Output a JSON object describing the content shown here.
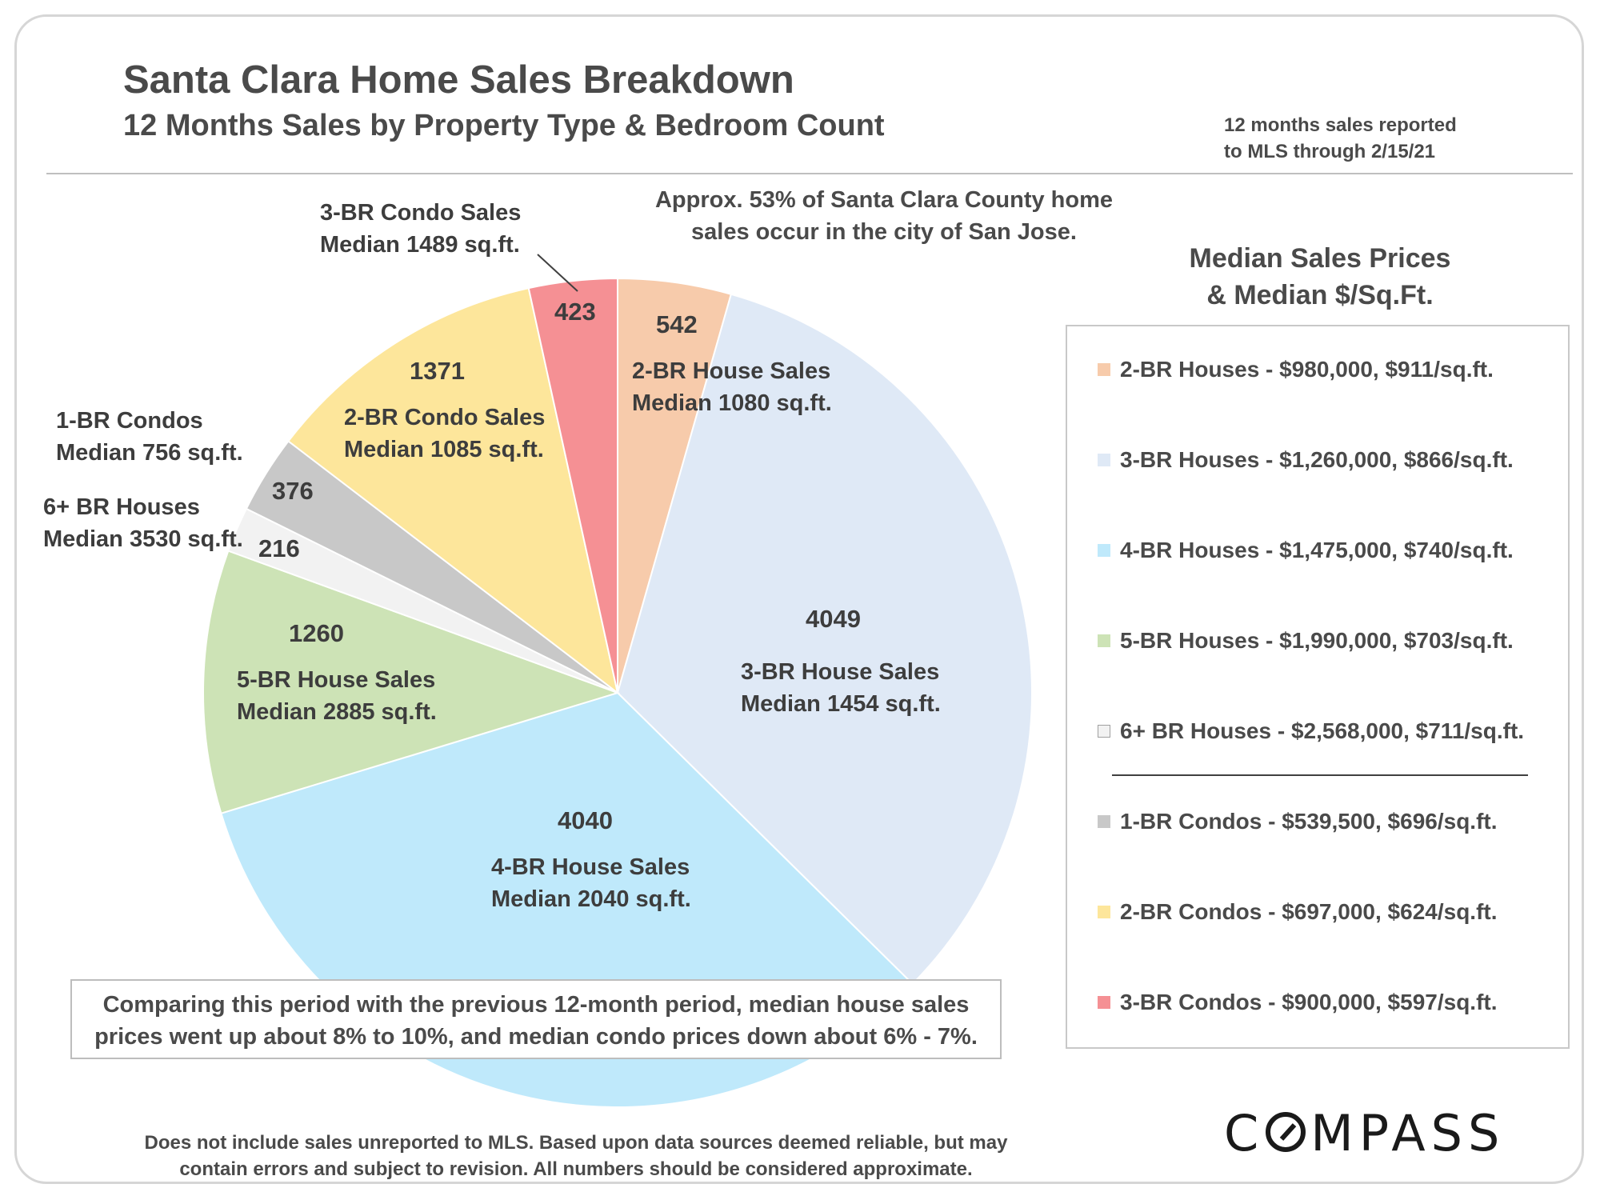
{
  "header": {
    "title": "Santa Clara Home Sales Breakdown",
    "subtitle": "12 Months Sales by Property Type & Bedroom Count",
    "as_of_line1": "12 months sales reported",
    "as_of_line2": "to MLS through 2/15/21"
  },
  "top_note": {
    "line1": "Approx. 53% of Santa Clara County home",
    "line2": "sales occur in the city of San Jose."
  },
  "chart_data": {
    "type": "pie",
    "slices": [
      {
        "label": "2-BR Houses",
        "value": 542,
        "color": "#f7cbab",
        "desc1": "2-BR House Sales",
        "desc2": "Median 1080 sq.ft."
      },
      {
        "label": "3-BR Houses",
        "value": 4049,
        "color": "#dfe9f6",
        "desc1": "3-BR House Sales",
        "desc2": "Median 1454 sq.ft."
      },
      {
        "label": "4-BR Houses",
        "value": 4040,
        "color": "#bfe9fb",
        "desc1": "4-BR House Sales",
        "desc2": "Median 2040 sq.ft."
      },
      {
        "label": "5-BR Houses",
        "value": 1260,
        "color": "#cde3b6",
        "desc1": "5-BR House Sales",
        "desc2": "Median 2885 sq.ft."
      },
      {
        "label": "6+ BR Houses",
        "value": 216,
        "color": "#f2f2f2",
        "desc1": "6+ BR Houses",
        "desc2": "Median 3530 sq.ft."
      },
      {
        "label": "1-BR Condos",
        "value": 376,
        "color": "#c8c8c8",
        "desc1": "1-BR Condos",
        "desc2": "Median 756 sq.ft."
      },
      {
        "label": "2-BR Condos",
        "value": 1371,
        "color": "#fde69b",
        "desc1": "2-BR Condo Sales",
        "desc2": "Median 1085 sq.ft."
      },
      {
        "label": "3-BR Condos",
        "value": 423,
        "color": "#f59094",
        "desc1": "3-BR Condo Sales",
        "desc2": "Median 1489 sq.ft."
      }
    ]
  },
  "legend": {
    "title_line1": "Median Sales Prices",
    "title_line2": "& Median $/Sq.Ft.",
    "items": [
      {
        "text": "2-BR Houses - $980,000, $911/sq.ft.",
        "color": "#f7cbab"
      },
      {
        "text": "3-BR Houses - $1,260,000, $866/sq.ft.",
        "color": "#dfe9f6"
      },
      {
        "text": "4-BR Houses - $1,475,000, $740/sq.ft.",
        "color": "#bfe9fb"
      },
      {
        "text": "5-BR Houses - $1,990,000, $703/sq.ft.",
        "color": "#cde3b6"
      },
      {
        "text": "6+ BR Houses - $2,568,000, $711/sq.ft.",
        "color": "#f2f2f2"
      },
      {
        "text": "1-BR Condos - $539,500, $696/sq.ft.",
        "color": "#c8c8c8"
      },
      {
        "text": "2-BR Condos - $697,000, $624/sq.ft.",
        "color": "#fde69b"
      },
      {
        "text": "3-BR Condos - $900,000, $597/sq.ft.",
        "color": "#f59094"
      }
    ]
  },
  "comparison": {
    "line1": "Comparing this period with the previous 12-month period, median house sales",
    "line2": "prices went up about 8% to 10%, and median condo prices down about 6% - 7%."
  },
  "footer": {
    "line1": "Does not include sales unreported to MLS.  Based upon data sources deemed reliable, but may",
    "line2": "contain errors and subject to revision. All numbers should be considered approximate."
  },
  "brand": {
    "pre": "C",
    "post": "MPASS"
  }
}
